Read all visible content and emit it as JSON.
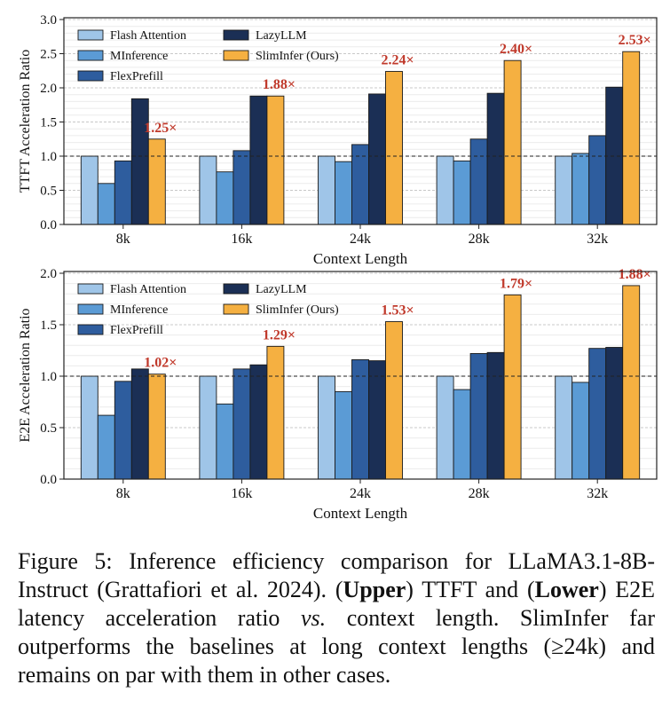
{
  "chart_data": [
    {
      "type": "bar",
      "ylabel": "TTFT Acceleration Ratio",
      "xlabel": "Context Length",
      "ylim": [
        0,
        3.0
      ],
      "yticks": [
        "0.0",
        "0.5",
        "1.0",
        "1.5",
        "2.0",
        "2.5",
        "3.0"
      ],
      "categories": [
        "8k",
        "16k",
        "24k",
        "28k",
        "32k"
      ],
      "series": [
        {
          "name": "Flash Attention",
          "color": "#9fc5e8",
          "values": [
            1.0,
            1.0,
            1.0,
            1.0,
            1.0
          ]
        },
        {
          "name": "MInference",
          "color": "#5b9bd5",
          "values": [
            0.6,
            0.77,
            0.92,
            0.93,
            1.04
          ]
        },
        {
          "name": "FlexPrefill",
          "color": "#2e5d9e",
          "values": [
            0.93,
            1.08,
            1.17,
            1.25,
            1.3
          ]
        },
        {
          "name": "LazyLLM",
          "color": "#1b2f55",
          "values": [
            1.84,
            1.88,
            1.91,
            1.92,
            2.01
          ]
        },
        {
          "name": "SlimInfer (Ours)",
          "color": "#f5b041",
          "values": [
            1.25,
            1.88,
            2.24,
            2.4,
            2.53
          ]
        }
      ],
      "annotations": [
        "1.25×",
        "1.88×",
        "2.24×",
        "2.40×",
        "2.53×"
      ],
      "reference_line": 1.0,
      "legend": "top-left"
    },
    {
      "type": "bar",
      "ylabel": "E2E Acceleration Ratio",
      "xlabel": "Context Length",
      "ylim": [
        0,
        2.0
      ],
      "yticks": [
        "0.0",
        "0.5",
        "1.0",
        "1.5",
        "2.0"
      ],
      "categories": [
        "8k",
        "16k",
        "24k",
        "28k",
        "32k"
      ],
      "series": [
        {
          "name": "Flash Attention",
          "color": "#9fc5e8",
          "values": [
            1.0,
            1.0,
            1.0,
            1.0,
            1.0
          ]
        },
        {
          "name": "MInference",
          "color": "#5b9bd5",
          "values": [
            0.62,
            0.73,
            0.85,
            0.87,
            0.94
          ]
        },
        {
          "name": "FlexPrefill",
          "color": "#2e5d9e",
          "values": [
            0.95,
            1.07,
            1.16,
            1.22,
            1.27
          ]
        },
        {
          "name": "LazyLLM",
          "color": "#1b2f55",
          "values": [
            1.07,
            1.11,
            1.15,
            1.23,
            1.28
          ]
        },
        {
          "name": "SlimInfer (Ours)",
          "color": "#f5b041",
          "values": [
            1.02,
            1.29,
            1.53,
            1.79,
            1.88
          ]
        }
      ],
      "annotations": [
        "1.02×",
        "1.29×",
        "1.53×",
        "1.79×",
        "1.88×"
      ],
      "reference_line": 1.0,
      "legend": "top-left"
    }
  ],
  "annotation_color": "#c0392b",
  "caption": {
    "figure_label": "Figure 5: ",
    "text1": "Inference efficiency comparison for LLaMA3.1-8B-Instruct (Grattafiori et al. 2024). (",
    "upper": "Upper",
    "text2": ") TTFT and (",
    "lower": "Lower",
    "text3": ") E2E latency acceleration ratio ",
    "vs": "vs.",
    "text4": " context length. SlimInfer far outperforms the baselines at long context lengths (≥24k) and remains on par with them in other cases."
  }
}
